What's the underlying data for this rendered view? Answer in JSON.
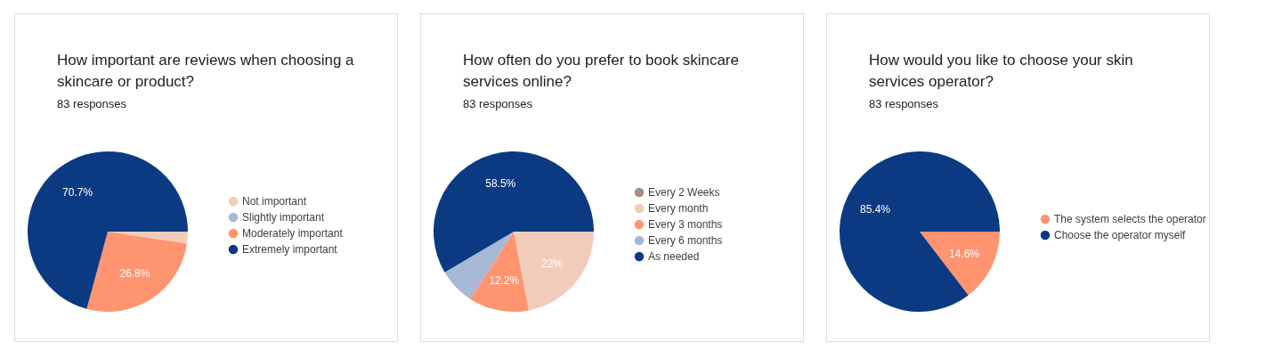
{
  "chart_data": [
    {
      "type": "pie",
      "title": "How important are reviews when choosing a skincare or product?",
      "subtitle": "83 responses",
      "legend": "right",
      "categories": [
        "Not important",
        "Slightly important",
        "Moderately important",
        "Extremely important"
      ],
      "values": [
        2.4,
        0,
        26.8,
        70.7
      ],
      "colors": [
        "#f1ccba",
        "#a7b8d4",
        "#ff9470",
        "#0b3a82"
      ],
      "value_labels": [
        null,
        null,
        "26.8%",
        "70.7%"
      ]
    },
    {
      "type": "pie",
      "title": "How often do you prefer to book skincare services online?",
      "subtitle": "83 responses",
      "legend": "right",
      "categories": [
        "Every 2 Weeks",
        "Every month",
        "Every 3 months",
        "Every 6 months",
        "As needed"
      ],
      "values": [
        0,
        22,
        12.2,
        7.3,
        58.5
      ],
      "colors": [
        "#a88b7e",
        "#f1ccba",
        "#ff9470",
        "#a7b8d4",
        "#0b3a82"
      ],
      "value_labels": [
        null,
        "22%",
        "12.2%",
        null,
        "58.5%"
      ]
    },
    {
      "type": "pie",
      "title": "How would you like to choose your skin services operator?",
      "subtitle": "83 responses",
      "legend": "right",
      "categories": [
        "The system selects the operator",
        "Choose the operator myself"
      ],
      "values": [
        14.6,
        85.4
      ],
      "colors": [
        "#ff9470",
        "#0b3a82"
      ],
      "value_labels": [
        "14.6%",
        "85.4%"
      ]
    }
  ]
}
